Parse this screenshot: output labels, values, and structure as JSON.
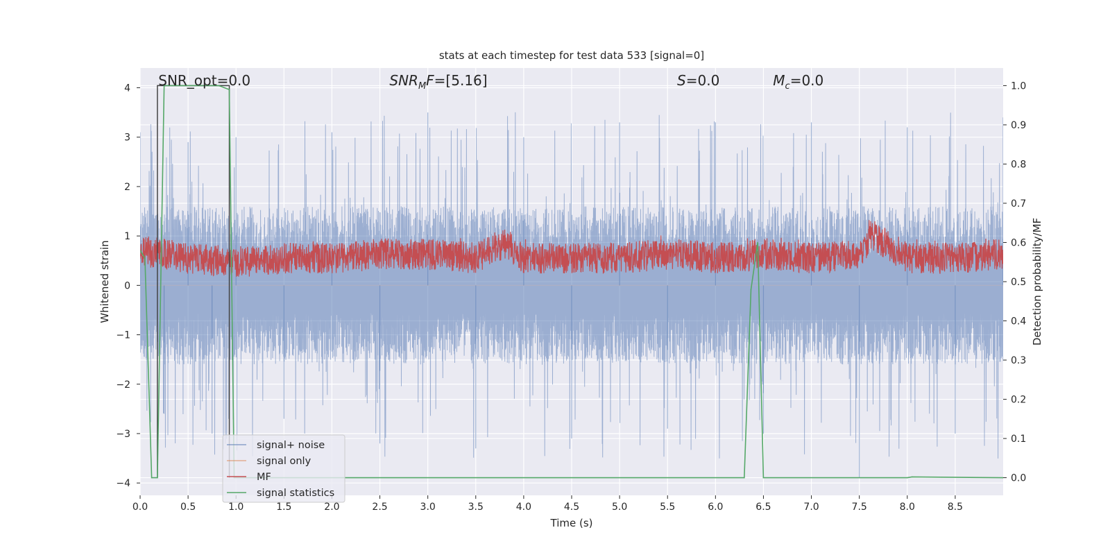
{
  "chart_data": {
    "type": "line",
    "title": "stats at each timestep for test data 533 [signal=0]",
    "xlabel": "Time (s)",
    "ylabel_left": "Whitened strain",
    "ylabel_right": "Detection probability/MF",
    "xlim": [
      0,
      9
    ],
    "ylim_left": [
      -4.25,
      4.4
    ],
    "ylim_right": [
      -0.045,
      1.045
    ],
    "x_ticks": [
      0.0,
      0.5,
      1.0,
      1.5,
      2.0,
      2.5,
      3.0,
      3.5,
      4.0,
      4.5,
      5.0,
      5.5,
      6.0,
      6.5,
      7.0,
      7.5,
      8.0,
      8.5
    ],
    "x_tick_labels": [
      "0.0",
      "0.5",
      "1.0",
      "1.5",
      "2.0",
      "2.5",
      "3.0",
      "3.5",
      "4.0",
      "4.5",
      "5.0",
      "5.5",
      "6.0",
      "6.5",
      "7.0",
      "7.5",
      "8.0",
      "8.5"
    ],
    "y_left_ticks": [
      -4,
      -3,
      -2,
      -1,
      0,
      1,
      2,
      3,
      4
    ],
    "y_left_tick_labels": [
      "−4",
      "−3",
      "−2",
      "−1",
      "0",
      "1",
      "2",
      "3",
      "4"
    ],
    "y_right_ticks": [
      0.0,
      0.1,
      0.2,
      0.3,
      0.4,
      0.5,
      0.6,
      0.7,
      0.8,
      0.9,
      1.0
    ],
    "y_right_tick_labels": [
      "0.0",
      "0.1",
      "0.2",
      "0.3",
      "0.4",
      "0.5",
      "0.6",
      "0.7",
      "0.8",
      "0.9",
      "1.0"
    ],
    "grid": true,
    "legend_position": "lower-left",
    "annotations": [
      {
        "text": "SNR_opt=0.0",
        "x": 0.19
      },
      {
        "text": "SNR_MF=[5.16]",
        "x": 2.6
      },
      {
        "text": "S=0.0",
        "x": 5.6
      },
      {
        "text": "M_c=0.0",
        "x": 6.6
      }
    ],
    "series": [
      {
        "name": "signal+ noise",
        "axis": "left",
        "color": "#4c72b0",
        "opacity": 0.5,
        "envelope": {
          "typical_low": -1.6,
          "typical_high": 1.6,
          "peak_low": -3.9,
          "peak_high": 4.0
        },
        "x": [
          0.0,
          0.25,
          0.5,
          0.75,
          1.0,
          1.5,
          2.0,
          2.5,
          3.0,
          3.5,
          4.0,
          4.5,
          5.0,
          5.5,
          6.0,
          6.5,
          7.0,
          7.5,
          8.0,
          8.5,
          9.0
        ],
        "values": [
          3.1,
          -2.6,
          2.9,
          -3.0,
          3.0,
          -2.7,
          3.1,
          -3.2,
          3.5,
          -3.3,
          3.0,
          -3.1,
          3.3,
          -2.9,
          3.3,
          -3.0,
          3.3,
          -3.9,
          3.2,
          -3.0,
          3.4
        ]
      },
      {
        "name": "signal only",
        "axis": "left",
        "color": "#dd8452",
        "x": [
          0.0,
          9.0
        ],
        "values": [
          0.0,
          0.0
        ]
      },
      {
        "name": "MF",
        "axis": "right",
        "color": "#c44e52",
        "x": [
          0.0,
          0.5,
          1.0,
          1.5,
          2.0,
          2.5,
          3.0,
          3.5,
          3.8,
          4.0,
          4.5,
          5.0,
          5.5,
          6.0,
          6.5,
          7.0,
          7.5,
          7.63,
          8.0,
          8.5,
          9.0
        ],
        "values": [
          0.58,
          0.56,
          0.55,
          0.56,
          0.56,
          0.57,
          0.57,
          0.56,
          0.6,
          0.56,
          0.56,
          0.56,
          0.57,
          0.56,
          0.57,
          0.56,
          0.57,
          0.62,
          0.56,
          0.56,
          0.57
        ]
      },
      {
        "name": "signal statistics",
        "axis": "right",
        "color": "#55a868",
        "x": [
          0.0,
          0.05,
          0.12,
          0.18,
          0.25,
          0.3,
          0.82,
          0.93,
          0.98,
          6.3,
          6.37,
          6.44,
          6.5,
          8.0,
          8.05,
          9.0
        ],
        "values": [
          0.58,
          0.56,
          0.0,
          0.0,
          1.0,
          1.0,
          1.0,
          0.99,
          0.0,
          0.0,
          0.48,
          0.6,
          0.0,
          0.0,
          0.002,
          0.0
        ]
      },
      {
        "name": "",
        "axis": "right",
        "color": "#444444",
        "x": [
          0.18,
          0.18,
          0.93,
          0.93
        ],
        "values": [
          0.0,
          1.0,
          1.0,
          0.0
        ]
      }
    ]
  }
}
